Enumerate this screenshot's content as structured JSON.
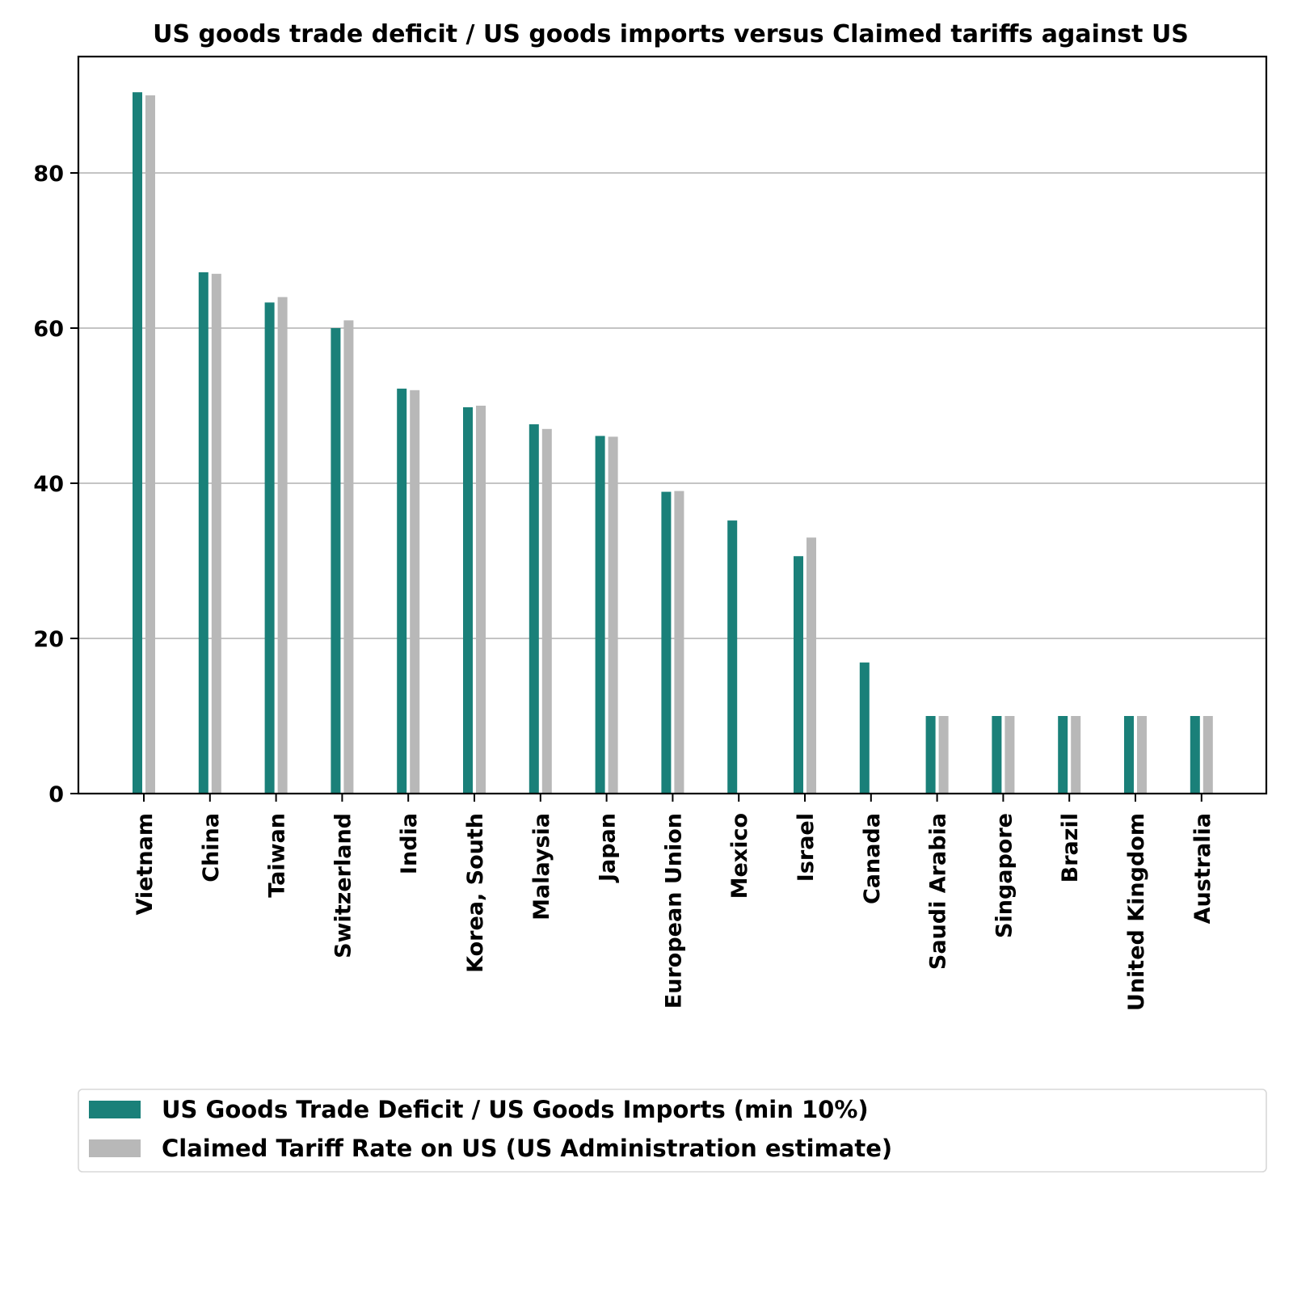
{
  "chart_data": {
    "type": "bar",
    "title": "US goods trade deficit / US goods imports versus Claimed tariffs against US",
    "xlabel": "",
    "ylabel": "",
    "ylim": [
      0,
      95
    ],
    "yticks": [
      0,
      20,
      40,
      60,
      80
    ],
    "grid": "horizontal",
    "legend_position": "bottom",
    "categories": [
      "Vietnam",
      "China",
      "Taiwan",
      "Switzerland",
      "India",
      "Korea, South",
      "Malaysia",
      "Japan",
      "European Union",
      "Mexico",
      "Israel",
      "Canada",
      "Saudi Arabia",
      "Singapore",
      "Brazil",
      "United Kingdom",
      "Australia"
    ],
    "series": [
      {
        "name": "US Goods Trade Deficit / US Goods Imports (min 10%)",
        "color": "#1a8079",
        "values": [
          90.4,
          67.2,
          63.3,
          60.0,
          52.2,
          49.8,
          47.6,
          46.1,
          38.9,
          35.2,
          30.6,
          16.9,
          10,
          10,
          10,
          10,
          10
        ]
      },
      {
        "name": "Claimed Tariff Rate on US (US Administration estimate)",
        "color": "#b8b8b8",
        "values": [
          90,
          67,
          64,
          61,
          52,
          50,
          47,
          46,
          39,
          0,
          33,
          0,
          10,
          10,
          10,
          10,
          10
        ]
      }
    ]
  }
}
